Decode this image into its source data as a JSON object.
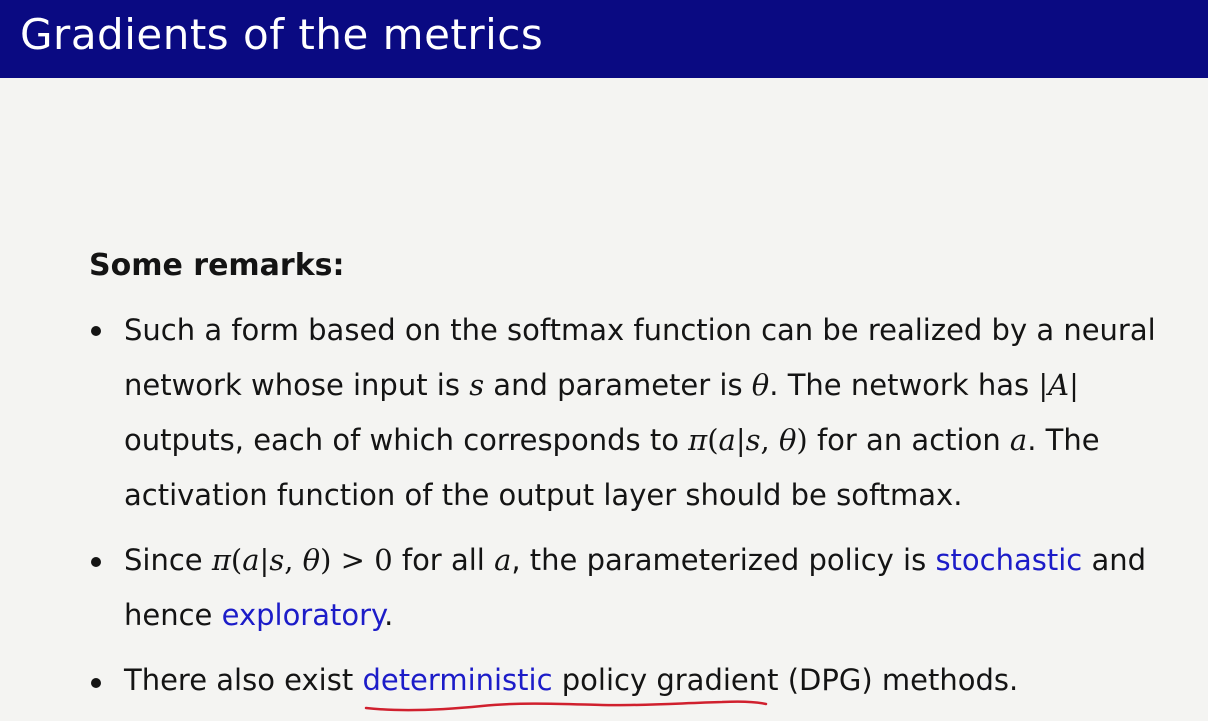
{
  "slide": {
    "title": "Gradients of the metrics",
    "remarks_heading": "Some remarks:"
  },
  "bullets": [
    {
      "lines": [
        [
          "Such a form based on the softmax function can be realized by a neural"
        ],
        [
          "network whose input is ",
          "s",
          " and parameter is ",
          "θ",
          ". The network has ",
          "|",
          "A",
          "|"
        ],
        [
          "outputs, each of which corresponds to ",
          "π",
          "(",
          "a",
          "|",
          "s",
          ", ",
          "θ",
          ")",
          " for an action ",
          "a",
          ". The"
        ],
        [
          "activation function of the output layer should be softmax."
        ]
      ]
    },
    {
      "lines": [
        [
          "Since ",
          "π",
          "(",
          "a",
          "|",
          "s",
          ", ",
          "θ",
          ")",
          " > 0",
          " for all ",
          "a",
          ", the parameterized policy is ",
          "stochastic",
          " and"
        ],
        [
          "hence ",
          "exploratory",
          "."
        ]
      ]
    },
    {
      "lines": [
        [
          "There also exist ",
          "deterministic",
          " policy gradient (DPG) methods."
        ]
      ]
    }
  ],
  "colors": {
    "header_bg": "#0a0a82",
    "link": "#1c1cc8",
    "annotation": "#d0202e"
  }
}
